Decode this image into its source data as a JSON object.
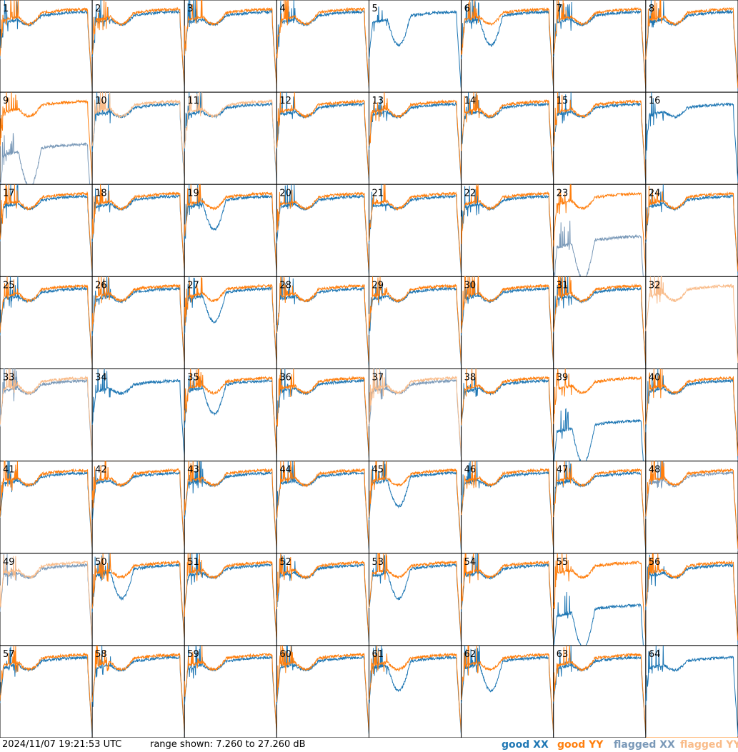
{
  "footer": {
    "timestamp": "2024/11/07 19:21:53 UTC",
    "range_text": "range shown: 7.260 to 27.260 dB"
  },
  "legend": [
    {
      "label": "good XX",
      "color": "#1f77b4"
    },
    {
      "label": "good YY",
      "color": "#ff7f0e"
    },
    {
      "label": "flagged XX",
      "color": "#7a99b8"
    },
    {
      "label": "flagged YY",
      "color": "#f9bc8a"
    }
  ],
  "chart_data": {
    "type": "line",
    "layout": "small-multiples 8x8 spectra",
    "y_range_db": [
      7.26,
      27.26
    ],
    "x_axis": "frequency channel (unlabeled)",
    "grid": false,
    "series_names": [
      "good XX",
      "good YY",
      "flagged XX",
      "flagged YY"
    ],
    "panels": [
      {
        "id": "1"
      },
      {
        "id": "2"
      },
      {
        "id": "3"
      },
      {
        "id": "4"
      },
      {
        "id": "5",
        "yy_flagged": true,
        "yy_dead": true
      },
      {
        "id": "6"
      },
      {
        "id": "7"
      },
      {
        "id": "8"
      },
      {
        "id": "9",
        "xx_flagged": true,
        "xx_dead": true
      },
      {
        "id": "10",
        "yy_flagged": true
      },
      {
        "id": "11",
        "yy_flagged": true
      },
      {
        "id": "12"
      },
      {
        "id": "13"
      },
      {
        "id": "14"
      },
      {
        "id": "15"
      },
      {
        "id": "16",
        "yy_flagged": true,
        "yy_dead": true
      },
      {
        "id": "17"
      },
      {
        "id": "18"
      },
      {
        "id": "19"
      },
      {
        "id": "20"
      },
      {
        "id": "21"
      },
      {
        "id": "22"
      },
      {
        "id": "23",
        "xx_flagged": true,
        "xx_dead": true
      },
      {
        "id": "24"
      },
      {
        "id": "25"
      },
      {
        "id": "26"
      },
      {
        "id": "27"
      },
      {
        "id": "28"
      },
      {
        "id": "29"
      },
      {
        "id": "30"
      },
      {
        "id": "31"
      },
      {
        "id": "32",
        "xx_flagged": true,
        "yy_flagged": true,
        "xx_missing": true
      },
      {
        "id": "33",
        "xx_flagged": true,
        "yy_flagged": true
      },
      {
        "id": "34",
        "yy_dead": true
      },
      {
        "id": "35"
      },
      {
        "id": "36"
      },
      {
        "id": "37",
        "xx_flagged": true,
        "yy_flagged": true
      },
      {
        "id": "38"
      },
      {
        "id": "39",
        "xx_dead": true
      },
      {
        "id": "40"
      },
      {
        "id": "41"
      },
      {
        "id": "42"
      },
      {
        "id": "43"
      },
      {
        "id": "44"
      },
      {
        "id": "45"
      },
      {
        "id": "46"
      },
      {
        "id": "47"
      },
      {
        "id": "48",
        "xx_flagged": true
      },
      {
        "id": "49",
        "xx_flagged": true,
        "yy_flagged": true
      },
      {
        "id": "50"
      },
      {
        "id": "51"
      },
      {
        "id": "52"
      },
      {
        "id": "53"
      },
      {
        "id": "54"
      },
      {
        "id": "55",
        "xx_dead": true
      },
      {
        "id": "56"
      },
      {
        "id": "57"
      },
      {
        "id": "58"
      },
      {
        "id": "59"
      },
      {
        "id": "60"
      },
      {
        "id": "61"
      },
      {
        "id": "62"
      },
      {
        "id": "63"
      },
      {
        "id": "64",
        "yy_dead": true
      }
    ]
  }
}
